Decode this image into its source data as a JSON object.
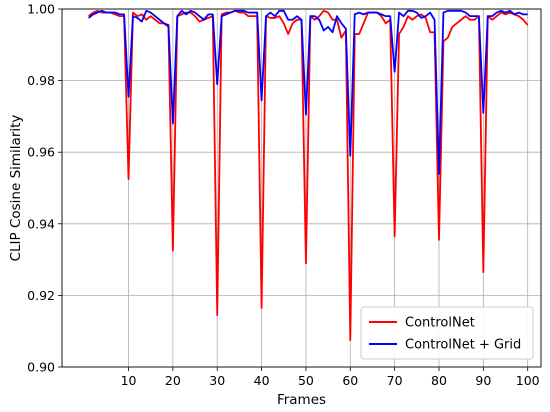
{
  "chart_data": {
    "type": "line",
    "title": "",
    "xlabel": "Frames",
    "ylabel": "CLIP Cosine Similarity",
    "xlim": [
      -5,
      103
    ],
    "ylim": [
      0.9,
      1.0
    ],
    "grid": "x-major",
    "legend": "bottom-right",
    "xticks": [
      10,
      20,
      30,
      40,
      50,
      60,
      70,
      80,
      90,
      100
    ],
    "yticks": [
      0.9,
      0.92,
      0.94,
      0.96,
      0.98,
      1.0
    ],
    "ytick_labels": [
      "0.90",
      "0.92",
      "0.94",
      "0.96",
      "0.98",
      "1.00"
    ],
    "series": [
      {
        "name": "ControlNet",
        "color": "#ff0000",
        "x": [
          1,
          2,
          3,
          4,
          5,
          6,
          7,
          8,
          9,
          10,
          11,
          12,
          13,
          14,
          15,
          16,
          17,
          18,
          19,
          20,
          21,
          22,
          23,
          24,
          25,
          26,
          27,
          28,
          29,
          30,
          31,
          32,
          33,
          34,
          35,
          36,
          37,
          38,
          39,
          40,
          41,
          42,
          43,
          44,
          45,
          46,
          47,
          48,
          49,
          50,
          51,
          52,
          53,
          54,
          55,
          56,
          57,
          58,
          59,
          60,
          61,
          62,
          63,
          64,
          65,
          66,
          67,
          68,
          69,
          70,
          71,
          72,
          73,
          74,
          75,
          76,
          77,
          78,
          79,
          80,
          81,
          82,
          83,
          84,
          85,
          86,
          87,
          88,
          89,
          90,
          91,
          92,
          93,
          94,
          95,
          96,
          97,
          98,
          99,
          100
        ],
        "y": [
          0.998,
          0.999,
          0.9995,
          0.999,
          0.999,
          0.999,
          0.9985,
          0.998,
          0.998,
          0.9525,
          0.999,
          0.998,
          0.9985,
          0.997,
          0.998,
          0.997,
          0.996,
          0.996,
          0.995,
          0.9325,
          0.998,
          0.9985,
          0.999,
          0.999,
          0.998,
          0.9965,
          0.997,
          0.9975,
          0.998,
          0.9145,
          0.9985,
          0.999,
          0.999,
          0.9995,
          0.999,
          0.999,
          0.998,
          0.998,
          0.998,
          0.9165,
          0.998,
          0.9975,
          0.9975,
          0.998,
          0.996,
          0.993,
          0.996,
          0.997,
          0.997,
          0.929,
          0.998,
          0.997,
          0.998,
          0.9995,
          0.999,
          0.997,
          0.997,
          0.992,
          0.994,
          0.9075,
          0.993,
          0.993,
          0.996,
          0.999,
          0.999,
          0.999,
          0.998,
          0.996,
          0.997,
          0.9365,
          0.993,
          0.995,
          0.998,
          0.997,
          0.998,
          0.9985,
          0.9975,
          0.9935,
          0.9935,
          0.9355,
          0.991,
          0.992,
          0.995,
          0.996,
          0.997,
          0.998,
          0.997,
          0.997,
          0.998,
          0.9265,
          0.998,
          0.997,
          0.998,
          0.999,
          0.9985,
          0.999,
          0.9985,
          0.998,
          0.997,
          0.9955
        ]
      },
      {
        "name": "ControlNet + Grid",
        "color": "#0000ff",
        "x": [
          1,
          2,
          3,
          4,
          5,
          6,
          7,
          8,
          9,
          10,
          11,
          12,
          13,
          14,
          15,
          16,
          17,
          18,
          19,
          20,
          21,
          22,
          23,
          24,
          25,
          26,
          27,
          28,
          29,
          30,
          31,
          32,
          33,
          34,
          35,
          36,
          37,
          38,
          39,
          40,
          41,
          42,
          43,
          44,
          45,
          46,
          47,
          48,
          49,
          50,
          51,
          52,
          53,
          54,
          55,
          56,
          57,
          58,
          59,
          60,
          61,
          62,
          63,
          64,
          65,
          66,
          67,
          68,
          69,
          70,
          71,
          72,
          73,
          74,
          75,
          76,
          77,
          78,
          79,
          80,
          81,
          82,
          83,
          84,
          85,
          86,
          87,
          88,
          89,
          90,
          91,
          92,
          93,
          94,
          95,
          96,
          97,
          98,
          99,
          100
        ],
        "y": [
          0.9975,
          0.9985,
          0.999,
          0.9995,
          0.999,
          0.999,
          0.999,
          0.9985,
          0.9985,
          0.9755,
          0.998,
          0.9975,
          0.9965,
          0.9995,
          0.999,
          0.998,
          0.997,
          0.996,
          0.9955,
          0.968,
          0.998,
          0.9995,
          0.9985,
          0.9995,
          0.999,
          0.998,
          0.997,
          0.9985,
          0.9985,
          0.979,
          0.998,
          0.9985,
          0.999,
          0.9995,
          0.9995,
          0.9995,
          0.999,
          0.999,
          0.999,
          0.9745,
          0.998,
          0.999,
          0.998,
          0.9995,
          0.9995,
          0.997,
          0.997,
          0.998,
          0.997,
          0.9705,
          0.998,
          0.998,
          0.997,
          0.994,
          0.995,
          0.9935,
          0.998,
          0.996,
          0.9945,
          0.959,
          0.9985,
          0.999,
          0.9985,
          0.999,
          0.999,
          0.999,
          0.9985,
          0.998,
          0.998,
          0.9825,
          0.999,
          0.998,
          0.9995,
          0.9995,
          0.999,
          0.9975,
          0.998,
          0.999,
          0.997,
          0.954,
          0.999,
          0.9995,
          0.9995,
          0.9995,
          0.9995,
          0.999,
          0.998,
          0.998,
          0.998,
          0.971,
          0.998,
          0.998,
          0.999,
          0.9995,
          0.999,
          0.9995,
          0.9985,
          0.999,
          0.9985,
          0.9985
        ]
      }
    ]
  }
}
